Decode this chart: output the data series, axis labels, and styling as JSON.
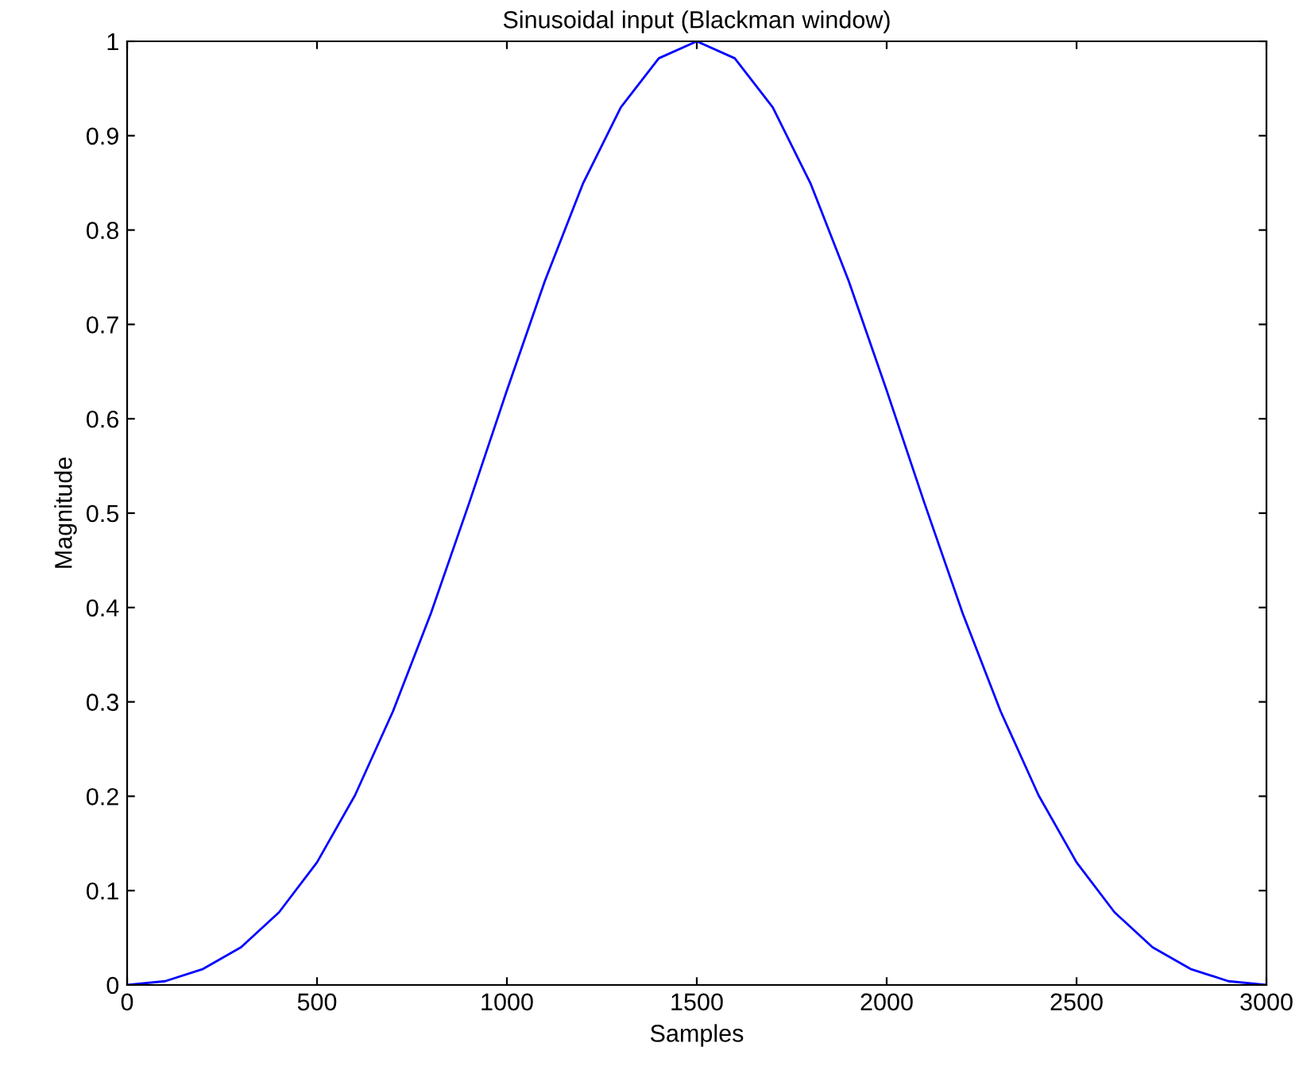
{
  "chart_data": {
    "type": "line",
    "title": "Sinusoidal input (Blackman window)",
    "xlabel": "Samples",
    "ylabel": "Magnitude",
    "x": [
      0,
      100,
      200,
      300,
      400,
      500,
      600,
      700,
      800,
      900,
      1000,
      1100,
      1200,
      1300,
      1400,
      1500,
      1600,
      1700,
      1800,
      1900,
      2000,
      2100,
      2200,
      2300,
      2400,
      2500,
      2600,
      2700,
      2800,
      2900,
      3000
    ],
    "series": [
      {
        "color": "#0000ff",
        "values": [
          0,
          0.004,
          0.017,
          0.04,
          0.077,
          0.13,
          0.201,
          0.29,
          0.394,
          0.51,
          0.63,
          0.746,
          0.849,
          0.93,
          0.982,
          1.0,
          0.982,
          0.93,
          0.849,
          0.746,
          0.63,
          0.51,
          0.394,
          0.29,
          0.201,
          0.13,
          0.077,
          0.04,
          0.017,
          0.004,
          0
        ]
      }
    ],
    "xlim": [
      0,
      3000
    ],
    "xticks": [
      0,
      500,
      1000,
      1500,
      2000,
      2500,
      3000
    ],
    "ylim": [
      0,
      1
    ],
    "yticks": [
      0,
      0.1,
      0.2,
      0.3,
      0.4,
      0.5,
      0.6,
      0.7,
      0.8,
      0.9,
      1
    ],
    "grid": false,
    "legend": false
  }
}
